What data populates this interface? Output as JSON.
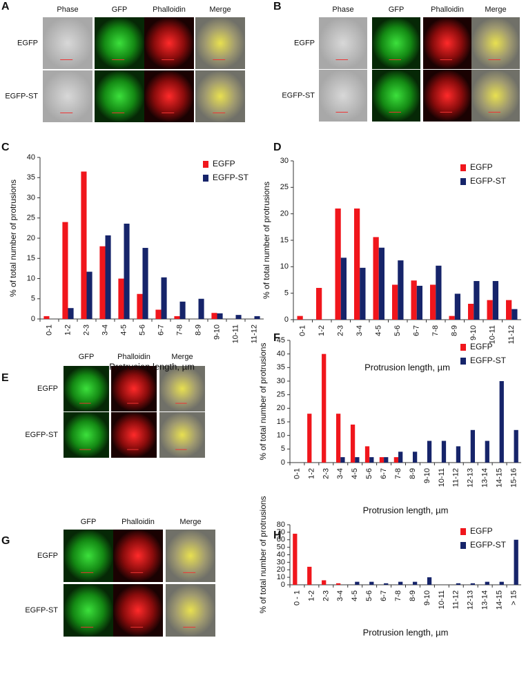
{
  "image_panels": [
    {
      "label": "A",
      "columns": [
        "Phase",
        "GFP",
        "Phalloidin",
        "Merge"
      ],
      "rows": [
        "EGFP",
        "EGFP-ST"
      ]
    },
    {
      "label": "B",
      "columns": [
        "Phase",
        "GFP",
        "Phalloidin",
        "Merge"
      ],
      "rows": [
        "EGFP",
        "EGFP-ST"
      ]
    },
    {
      "label": "E",
      "columns": [
        "GFP",
        "Phalloidin",
        "Merge"
      ],
      "rows": [
        "EGFP",
        "EGFP-ST"
      ]
    },
    {
      "label": "G",
      "columns": [
        "GFP",
        "Phalloidin",
        "Merge"
      ],
      "rows": [
        "EGFP",
        "EGFP-ST"
      ]
    }
  ],
  "chart_data": [
    {
      "type": "bar",
      "label": "C",
      "ylabel": "% of total number of protrusions",
      "xlabel": "Protrusion length, µm",
      "categories": [
        "0-1",
        "1-2",
        "2-3",
        "3-4",
        "4-5",
        "5-6",
        "6-7",
        "7-8",
        "8-9",
        "9-10",
        "10-11",
        "11-12"
      ],
      "series": [
        {
          "name": "EGFP",
          "color": "#f0161c",
          "values": [
            0.7,
            24,
            36.5,
            18,
            10,
            6.2,
            2.3,
            0.7,
            0,
            1.5,
            0,
            0
          ]
        },
        {
          "name": "EGFP-ST",
          "color": "#16246a",
          "values": [
            0,
            2.7,
            11.7,
            20.7,
            23.6,
            17.6,
            10.3,
            4.3,
            5,
            1.4,
            1,
            0.7
          ]
        }
      ],
      "ylim": [
        0,
        40
      ],
      "yticks": [
        0,
        5,
        10,
        15,
        20,
        25,
        30,
        35,
        40
      ],
      "legend": "upper right"
    },
    {
      "type": "bar",
      "label": "D",
      "ylabel": "% of total number of protrusions",
      "xlabel": "Protrusion length, µm",
      "categories": [
        "0-1",
        "1-2",
        "2-3",
        "3-4",
        "4-5",
        "5-6",
        "6-7",
        "7-8",
        "8-9",
        "9-10",
        "10-11",
        "11-12"
      ],
      "series": [
        {
          "name": "EGFP",
          "color": "#f0161c",
          "values": [
            0.7,
            6,
            21,
            21,
            15.6,
            6.6,
            7.4,
            6.6,
            0.7,
            3,
            3.7,
            3.7
          ]
        },
        {
          "name": "EGFP-ST",
          "color": "#16246a",
          "values": [
            0,
            0,
            11.7,
            9.8,
            13.6,
            11.2,
            6.4,
            10.2,
            4.9,
            7.3,
            7.3,
            2
          ]
        }
      ],
      "ylim": [
        0,
        30
      ],
      "yticks": [
        0,
        5,
        10,
        15,
        20,
        25,
        30
      ],
      "legend": "upper right"
    },
    {
      "type": "bar",
      "label": "F",
      "ylabel": "% of total number of protrusions",
      "xlabel": "Protrusion length, µm",
      "categories": [
        "0-1",
        "1-2",
        "2-3",
        "3-4",
        "4-5",
        "5-6",
        "6-7",
        "7-8",
        "8-9",
        "9-10",
        "10-11",
        "11-12",
        "12-13",
        "13-14",
        "14-15",
        "15-16"
      ],
      "series": [
        {
          "name": "EGFP",
          "color": "#f0161c",
          "values": [
            0,
            18,
            40,
            18,
            14,
            6,
            2,
            2,
            0,
            0,
            0,
            0,
            0,
            0,
            0,
            0
          ]
        },
        {
          "name": "EGFP-ST",
          "color": "#16246a",
          "values": [
            0,
            0,
            0,
            2,
            2,
            2,
            2,
            4,
            4,
            8,
            8,
            6,
            12,
            8,
            30,
            12
          ]
        }
      ],
      "ylim": [
        0,
        45
      ],
      "yticks": [
        0,
        5,
        10,
        15,
        20,
        25,
        30,
        35,
        40,
        45
      ],
      "legend": "upper right"
    },
    {
      "type": "bar",
      "label": "H",
      "ylabel": "% of total number of protrusions",
      "xlabel": "Protrusion length, µm",
      "categories": [
        "0 - 1",
        "1-2",
        "2-3",
        "3-4",
        "4-5",
        "5-6",
        "6-7",
        "7-8",
        "8-9",
        "9-10",
        "10-11",
        "11-12",
        "12-13",
        "13-14",
        "14-15",
        "> 15"
      ],
      "series": [
        {
          "name": "EGFP",
          "color": "#f0161c",
          "values": [
            68,
            24,
            6,
            2,
            0,
            0,
            0,
            0,
            0,
            0,
            0,
            0,
            0,
            0,
            0,
            0
          ]
        },
        {
          "name": "EGFP-ST",
          "color": "#16246a",
          "values": [
            0,
            0,
            0,
            0,
            4,
            4,
            2,
            4,
            4,
            10,
            0,
            2,
            2,
            4,
            4,
            60
          ]
        }
      ],
      "ylim": [
        0,
        80
      ],
      "yticks": [
        0,
        10,
        20,
        30,
        40,
        50,
        60,
        70,
        80
      ],
      "legend": "upper right"
    }
  ]
}
